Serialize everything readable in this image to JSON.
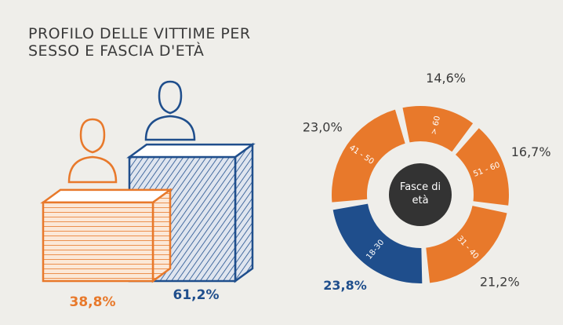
{
  "chart_data": [
    {
      "type": "bar",
      "title": "PROFILO DELLE VITTIME PER SESSO E FASCIA D'ETÀ",
      "values": [
        38.8,
        61.2
      ],
      "value_labels": [
        "38,8%",
        "61,2%"
      ],
      "colors": [
        "#e8792b",
        "#1f4e8c"
      ]
    },
    {
      "type": "donut",
      "center_label": "Fasce di età",
      "categories": [
        "> 60",
        "51 - 60",
        "31 - 40",
        "18-30",
        "41 - 50"
      ],
      "values": [
        14.6,
        16.7,
        21.2,
        23.8,
        23.0
      ],
      "value_labels": [
        "14,6%",
        "16,7%",
        "21,2%",
        "23,8%",
        "23,0%"
      ],
      "colors": [
        "#e8792b",
        "#e8792b",
        "#e8792b",
        "#1f4e8c",
        "#e8792b"
      ]
    }
  ]
}
